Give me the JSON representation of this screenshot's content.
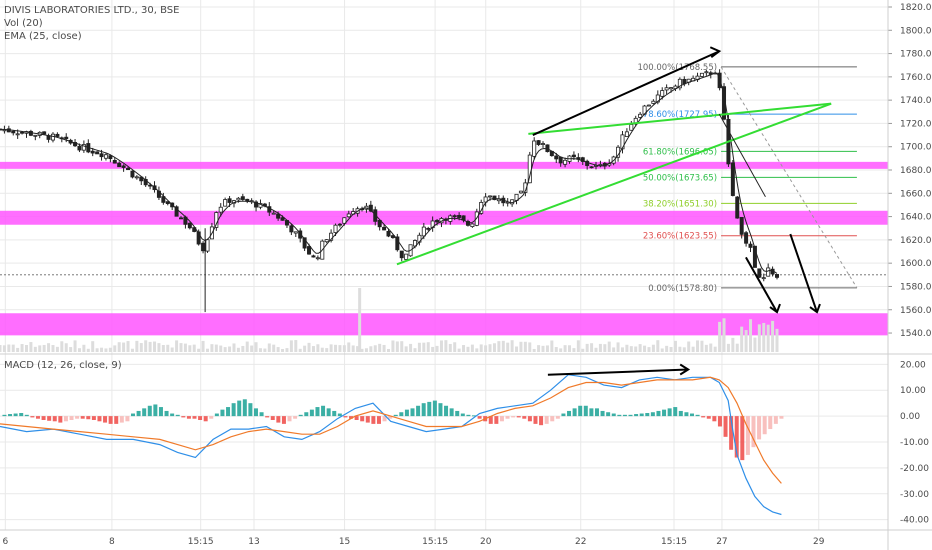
{
  "header": {
    "title": "DIVIS LABORATORIES LTD., 30, BSE",
    "vol": "Vol (20)",
    "ema": "EMA (25, close)"
  },
  "macd_header": "MACD (12, 26, close, 9)",
  "colors": {
    "up": "#222222",
    "zone": "#ff55ff",
    "green_line": "#33dd33",
    "ema": "#222222",
    "macd_line": "#2f8fe8",
    "signal_line": "#f07a2a",
    "hist_pos": "#26a69a",
    "hist_neg": "#ef5350",
    "hist_neg_light": "#f7b9b7",
    "grid": "#e9e9e9"
  },
  "chart_data": [
    {
      "type": "candlestick",
      "title": "DIVIS LABORATORIES LTD., 30, BSE",
      "ylim": [
        1522,
        1826
      ],
      "y_ticks": [
        1820,
        1800,
        1780,
        1760,
        1740,
        1720,
        1700,
        1680,
        1660,
        1640,
        1620,
        1600,
        1580,
        1560,
        1540
      ],
      "y_tick_labels": [
        "1820.00",
        "1800.00",
        "1780.00",
        "1760.00",
        "1740.00",
        "1720.00",
        "1700.00",
        "1680.00",
        "1660.00",
        "1640.00",
        "1620.00",
        "1600.00",
        "1580.00",
        "1560.00",
        "1540.00"
      ],
      "x_tick_labels": [
        "6",
        "8",
        "15:15",
        "13",
        "15",
        "15:15",
        "20",
        "22",
        "15:15",
        "27",
        "29"
      ],
      "x_tick_fractions": [
        0.006,
        0.126,
        0.226,
        0.286,
        0.388,
        0.49,
        0.547,
        0.654,
        0.759,
        0.813,
        0.922
      ],
      "close_path": [
        [
          0,
          1715
        ],
        [
          0.03,
          1712
        ],
        [
          0.06,
          1708
        ],
        [
          0.09,
          1700
        ],
        [
          0.12,
          1693
        ],
        [
          0.14,
          1682
        ],
        [
          0.16,
          1670
        ],
        [
          0.175,
          1660
        ],
        [
          0.19,
          1648
        ],
        [
          0.205,
          1638
        ],
        [
          0.215,
          1630
        ],
        [
          0.228,
          1612
        ],
        [
          0.235,
          1625
        ],
        [
          0.245,
          1648
        ],
        [
          0.26,
          1655
        ],
        [
          0.285,
          1652
        ],
        [
          0.31,
          1642
        ],
        [
          0.33,
          1628
        ],
        [
          0.345,
          1612
        ],
        [
          0.355,
          1602
        ],
        [
          0.365,
          1620
        ],
        [
          0.38,
          1632
        ],
        [
          0.395,
          1646
        ],
        [
          0.41,
          1650
        ],
        [
          0.425,
          1634
        ],
        [
          0.44,
          1622
        ],
        [
          0.455,
          1604
        ],
        [
          0.47,
          1622
        ],
        [
          0.485,
          1635
        ],
        [
          0.5,
          1640
        ],
        [
          0.515,
          1638
        ],
        [
          0.53,
          1632
        ],
        [
          0.545,
          1660
        ],
        [
          0.56,
          1655
        ],
        [
          0.575,
          1650
        ],
        [
          0.59,
          1664
        ],
        [
          0.6,
          1708
        ],
        [
          0.615,
          1698
        ],
        [
          0.63,
          1688
        ],
        [
          0.645,
          1690
        ],
        [
          0.66,
          1685
        ],
        [
          0.675,
          1682
        ],
        [
          0.69,
          1690
        ],
        [
          0.705,
          1714
        ],
        [
          0.72,
          1730
        ],
        [
          0.735,
          1740
        ],
        [
          0.75,
          1748
        ],
        [
          0.765,
          1755
        ],
        [
          0.78,
          1758
        ],
        [
          0.795,
          1762
        ],
        [
          0.807,
          1766
        ],
        [
          0.812,
          1740
        ],
        [
          0.817,
          1712
        ],
        [
          0.822,
          1676
        ],
        [
          0.827,
          1648
        ],
        [
          0.832,
          1630
        ],
        [
          0.838,
          1622
        ],
        [
          0.845,
          1612
        ],
        [
          0.852,
          1590
        ],
        [
          0.858,
          1583
        ],
        [
          0.866,
          1596
        ],
        [
          0.875,
          1588
        ]
      ],
      "zones": [
        {
          "from": 1681,
          "to": 1687
        },
        {
          "from": 1633,
          "to": 1645
        },
        {
          "from": 1538,
          "to": 1557
        }
      ],
      "green_channel": [
        {
          "from": [
            0.447,
            1599
          ],
          "to": [
            0.936,
            1737
          ]
        },
        {
          "from": [
            0.595,
            1711
          ],
          "to": [
            0.936,
            1737
          ]
        }
      ],
      "fib_levels": [
        {
          "label": "100.00%(1768.55)",
          "value": 1768.55,
          "color": "#666666"
        },
        {
          "label": "78.60%(1727.95)",
          "value": 1727.95,
          "color": "#2f8fe8"
        },
        {
          "label": "61.80%(1696.05)",
          "value": 1696.05,
          "color": "#2fbf4a"
        },
        {
          "label": "50.00%(1673.65)",
          "value": 1673.65,
          "color": "#2fbf4a"
        },
        {
          "label": "38.20%(1651.30)",
          "value": 1651.3,
          "color": "#8fcf2a"
        },
        {
          "label": "23.60%(1623.55)",
          "value": 1623.55,
          "color": "#e05050"
        },
        {
          "label": "0.00%(1578.80)",
          "value": 1578.8,
          "color": "#666666"
        }
      ],
      "current_price": 1590
    },
    {
      "type": "line",
      "title": "MACD (12, 26, close, 9)",
      "ylim": [
        -44,
        24
      ],
      "y_ticks": [
        20,
        10,
        0,
        -10,
        -20,
        -30,
        -40
      ],
      "y_tick_labels": [
        "20.00",
        "10.00",
        "0.00",
        "-10.00",
        "-20.00",
        "-30.00",
        "-40.00"
      ],
      "series": [
        {
          "name": "MACD",
          "x": [
            0,
            0.03,
            0.06,
            0.09,
            0.12,
            0.15,
            0.18,
            0.2,
            0.22,
            0.24,
            0.26,
            0.28,
            0.3,
            0.32,
            0.34,
            0.36,
            0.38,
            0.4,
            0.42,
            0.44,
            0.46,
            0.48,
            0.5,
            0.52,
            0.54,
            0.56,
            0.58,
            0.6,
            0.62,
            0.64,
            0.66,
            0.68,
            0.7,
            0.72,
            0.74,
            0.76,
            0.78,
            0.8,
            0.81,
            0.82,
            0.825,
            0.83,
            0.84,
            0.85,
            0.86,
            0.87,
            0.88
          ],
          "values": [
            -4,
            -6,
            -5,
            -7,
            -9,
            -9,
            -11,
            -14,
            -16,
            -9,
            -5,
            -5,
            -4,
            -8,
            -9,
            -6,
            -1,
            3,
            5,
            -2,
            -4,
            -6,
            -5,
            -4,
            1,
            3,
            4,
            5,
            10,
            16,
            15,
            12,
            11,
            14,
            15,
            14,
            15,
            15,
            13,
            6,
            -5,
            -15,
            -24,
            -31,
            -35,
            -37,
            -38
          ]
        },
        {
          "name": "Signal",
          "x": [
            0,
            0.03,
            0.06,
            0.09,
            0.12,
            0.15,
            0.18,
            0.2,
            0.22,
            0.24,
            0.26,
            0.28,
            0.3,
            0.32,
            0.34,
            0.36,
            0.38,
            0.4,
            0.42,
            0.44,
            0.46,
            0.48,
            0.5,
            0.52,
            0.54,
            0.56,
            0.58,
            0.6,
            0.62,
            0.64,
            0.66,
            0.68,
            0.7,
            0.72,
            0.74,
            0.76,
            0.78,
            0.8,
            0.81,
            0.82,
            0.83,
            0.84,
            0.85,
            0.86,
            0.87,
            0.88
          ],
          "values": [
            -3,
            -4,
            -5,
            -6,
            -7,
            -8,
            -9,
            -11,
            -13,
            -11,
            -8,
            -6,
            -5,
            -6,
            -7,
            -7,
            -4,
            0,
            2,
            0,
            -2,
            -4,
            -4,
            -4,
            -2,
            1,
            3,
            4,
            7,
            11,
            13,
            13,
            12,
            13,
            14,
            14,
            14,
            15,
            14,
            11,
            5,
            -3,
            -10,
            -17,
            -22,
            -26
          ]
        }
      ],
      "histogram": [
        0.5,
        0.8,
        1,
        1.2,
        0.5,
        -0.5,
        -1,
        -1.5,
        -1.8,
        -2,
        -2.5,
        -2,
        -1.5,
        -1,
        -1,
        -1.2,
        -1.5,
        -2,
        -2.5,
        -3,
        -3,
        -2.5,
        -2,
        1,
        2,
        3,
        4,
        4.5,
        3.5,
        2,
        1,
        0.5,
        -0.5,
        -1,
        -1,
        -1.5,
        -2,
        -1,
        1,
        2.5,
        3.5,
        5,
        6,
        6.5,
        5,
        3,
        1.5,
        -0.5,
        -1.5,
        -2.5,
        -3,
        -2,
        -1,
        0.5,
        1.5,
        2.5,
        3.5,
        4,
        3,
        2,
        1,
        -0.5,
        -1,
        -1.5,
        -2,
        -2.5,
        -3,
        -3,
        -2,
        -1,
        0.5,
        1.5,
        2.5,
        3,
        4,
        5,
        5.5,
        6,
        5,
        4,
        3,
        2,
        1,
        0.5,
        0.3,
        -1,
        -2,
        -3,
        -3,
        -2,
        -1,
        -0.5,
        -0.5,
        -1,
        -2,
        -3,
        -3.5,
        -3,
        -2,
        -1,
        1,
        2,
        3,
        4,
        4,
        3,
        3,
        2,
        1.5,
        1,
        0.5,
        0.5,
        0.5,
        0.8,
        1,
        1.2,
        1.5,
        2,
        2.5,
        3,
        3.5,
        2,
        1.5,
        1,
        0.5,
        -0.5,
        -1,
        -2,
        -4,
        -8,
        -13,
        -16,
        -17,
        -15,
        -12,
        -9,
        -7,
        -5,
        -3,
        -1
      ],
      "histogram_range": [
        0.005,
        0.88
      ]
    }
  ]
}
